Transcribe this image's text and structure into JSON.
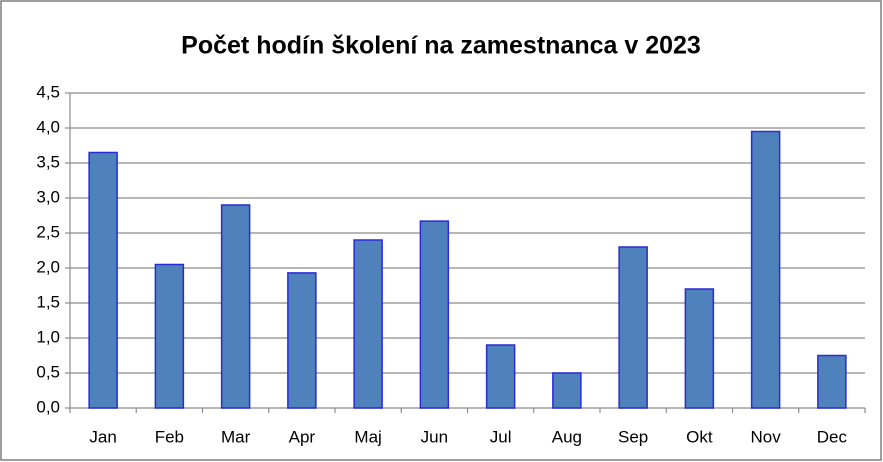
{
  "chart_data": {
    "type": "bar",
    "title": "Počet hodín školení na zamestnanca v 2023",
    "categories": [
      "Jan",
      "Feb",
      "Mar",
      "Apr",
      "Maj",
      "Jun",
      "Jul",
      "Aug",
      "Sep",
      "Okt",
      "Nov",
      "Dec"
    ],
    "values": [
      3.65,
      2.05,
      2.9,
      1.93,
      2.4,
      2.67,
      0.9,
      0.5,
      2.3,
      1.7,
      3.95,
      0.75
    ],
    "color": "#4f81bd",
    "ylim": [
      0,
      4.5
    ],
    "yticks": [
      {
        "value": 0,
        "label": "0,0"
      },
      {
        "value": 0.5,
        "label": "0,5"
      },
      {
        "value": 1,
        "label": "1,0"
      },
      {
        "value": 1.5,
        "label": "1,5"
      },
      {
        "value": 2,
        "label": "2,0"
      },
      {
        "value": 2.5,
        "label": "2,5"
      },
      {
        "value": 3,
        "label": "3,0"
      },
      {
        "value": 3.5,
        "label": "3,5"
      },
      {
        "value": 4,
        "label": "4,0"
      },
      {
        "value": 4.5,
        "label": "4,5"
      }
    ],
    "grid": true
  }
}
